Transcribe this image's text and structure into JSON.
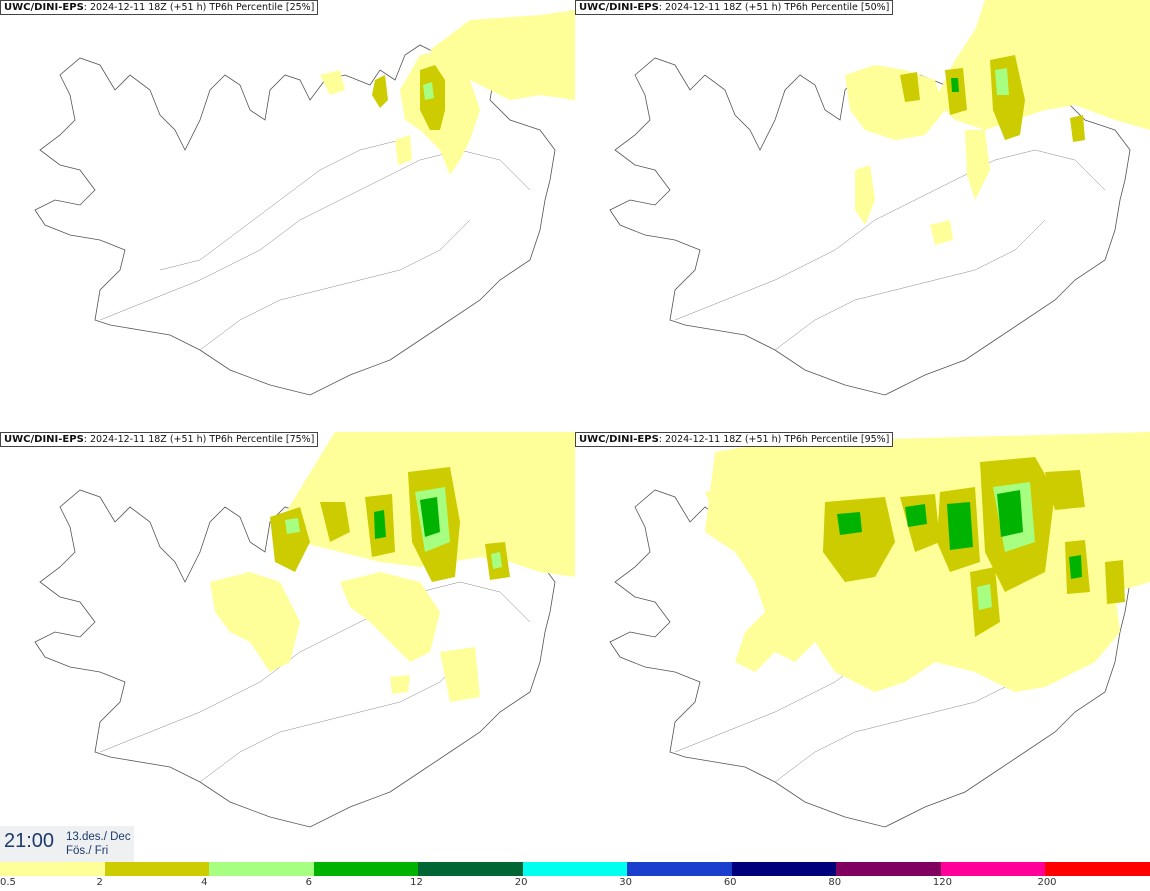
{
  "panels": [
    {
      "model": "UWC/DINI-EPS",
      "info": ": 2024-12-11 18Z (+51 h) TP6h Percentile [25%]"
    },
    {
      "model": "UWC/DINI-EPS",
      "info": ": 2024-12-11 18Z (+51 h) TP6h Percentile [50%]"
    },
    {
      "model": "UWC/DINI-EPS",
      "info": ": 2024-12-11 18Z (+51 h) TP6h Percentile [75%]"
    },
    {
      "model": "UWC/DINI-EPS",
      "info": ": 2024-12-11 18Z (+51 h) TP6h Percentile [95%]"
    }
  ],
  "timestamp": {
    "time": "21:00",
    "date_line1": "13.des./ Dec",
    "date_line2": "Fös./ Fri"
  },
  "legend": {
    "colors": [
      "#ffff99",
      "#cccc00",
      "#a6ff80",
      "#00b300",
      "#006633",
      "#00ffee",
      "#1a3fcc",
      "#00007a",
      "#800060",
      "#ff0099",
      "#ff0000"
    ],
    "labels": [
      "0.5",
      "2",
      "4",
      "6",
      "12",
      "20",
      "30",
      "60",
      "80",
      "120",
      "200"
    ]
  }
}
